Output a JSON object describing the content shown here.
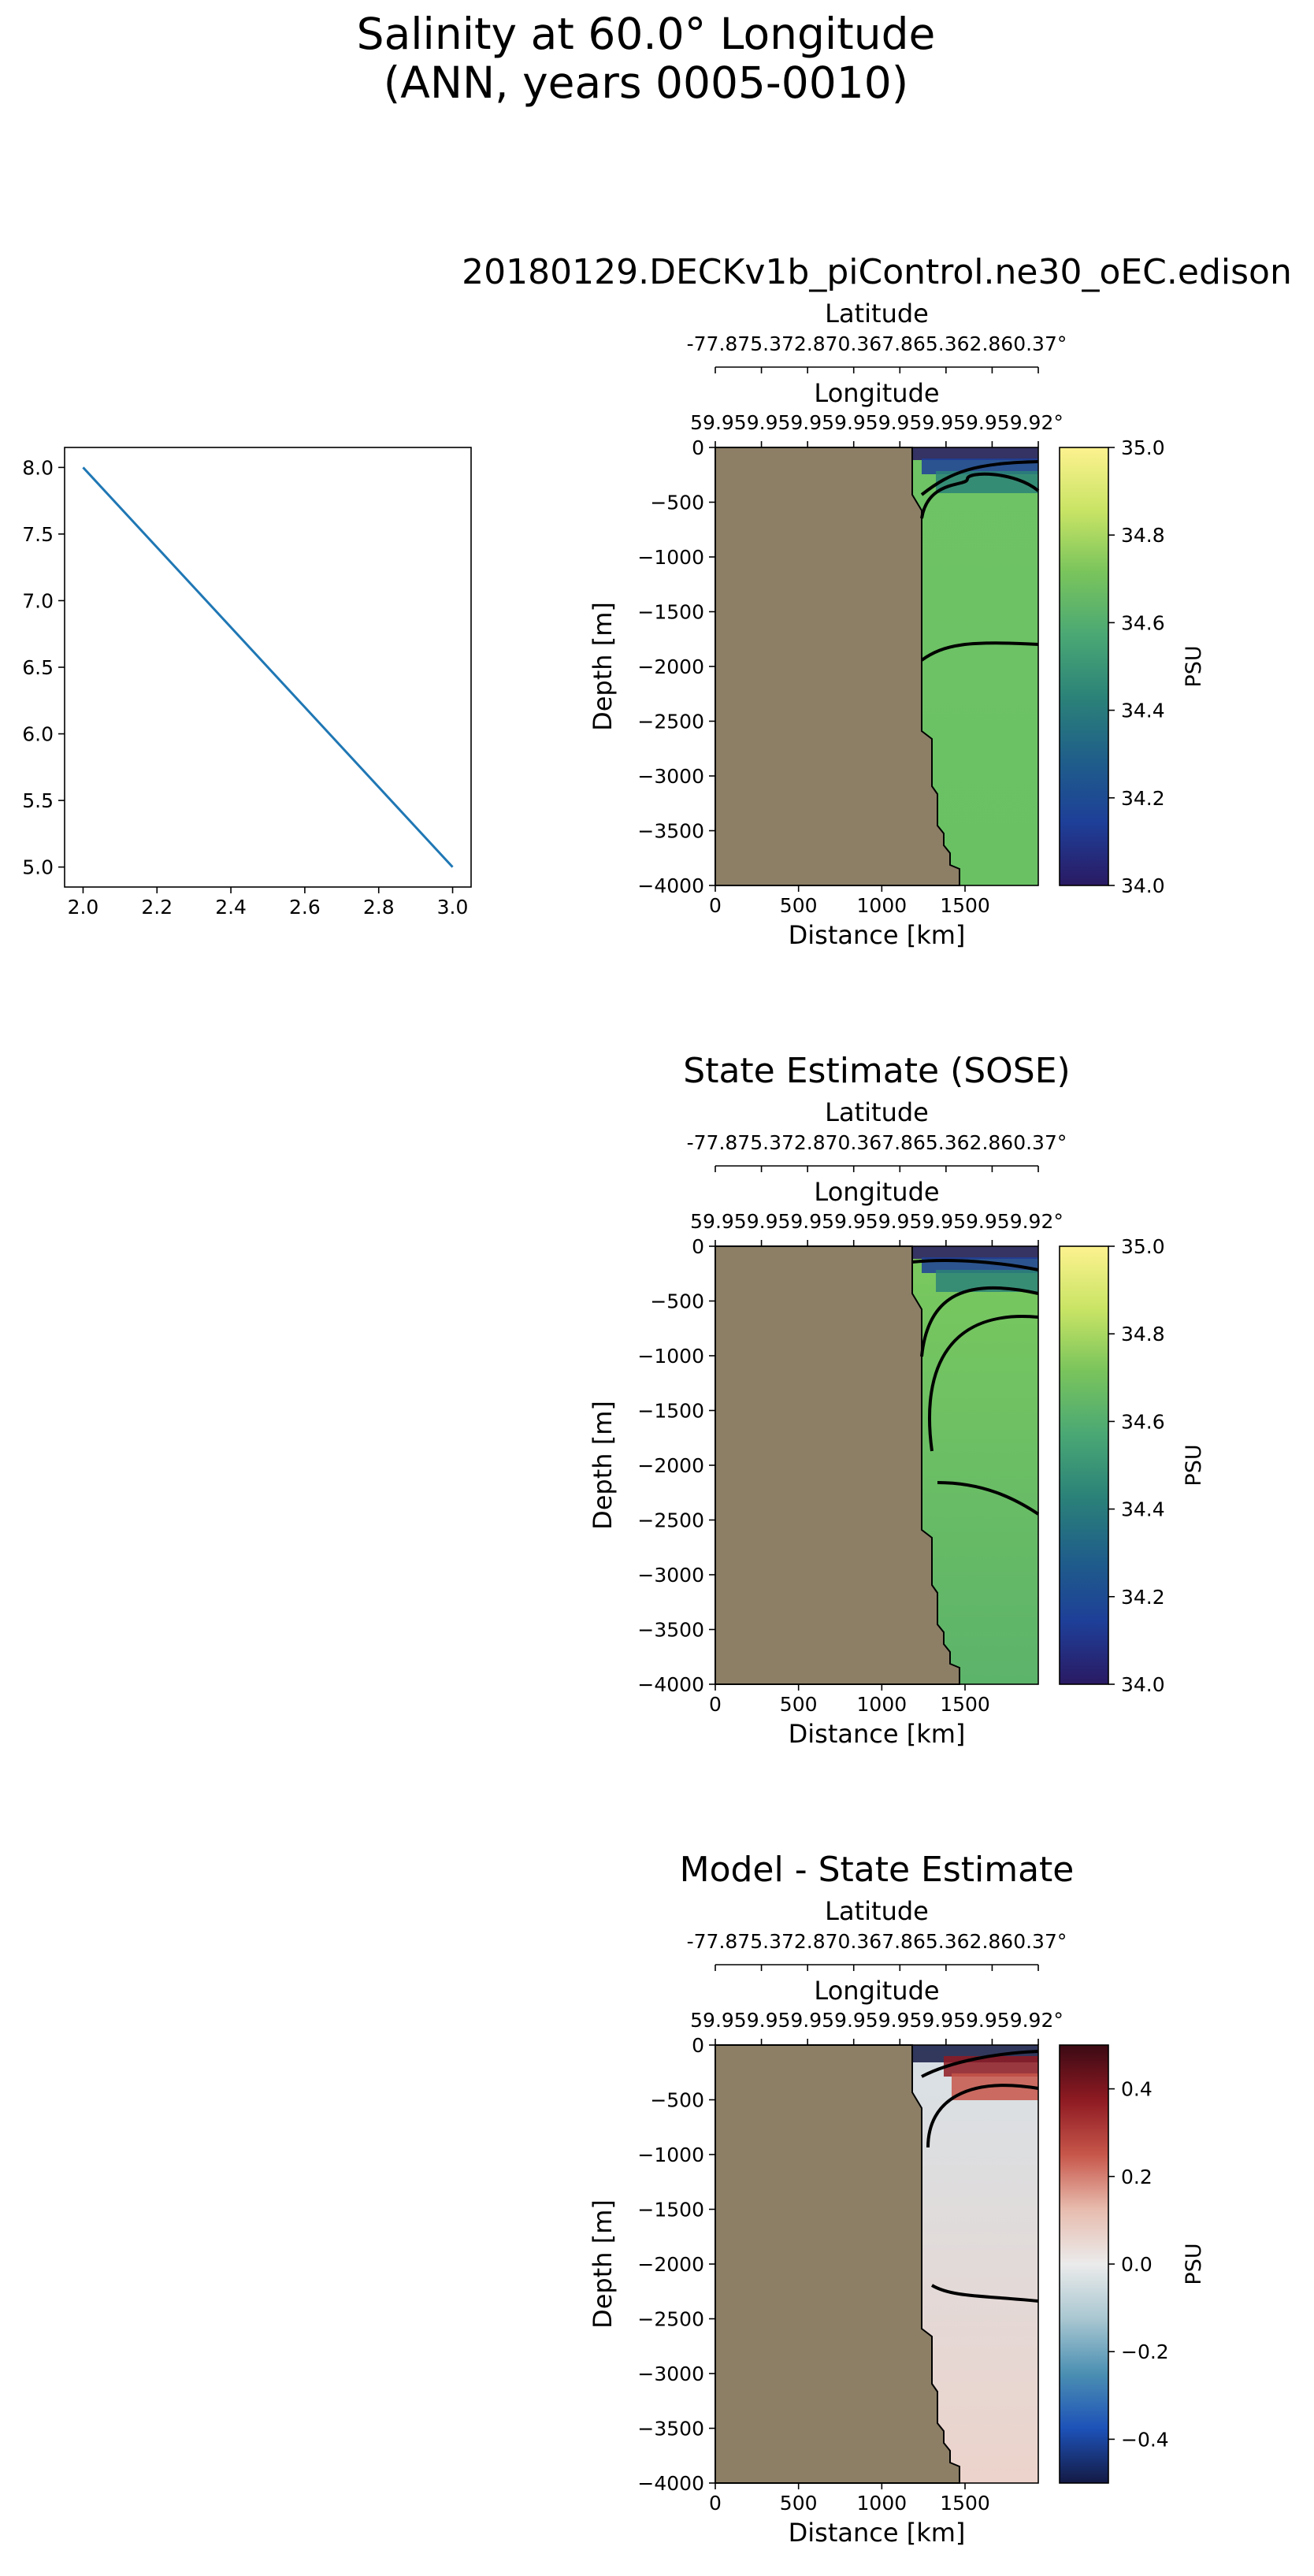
{
  "figure": {
    "title_line1": "Salinity at 60.0° Longitude",
    "title_line2": "(ANN, years 0005-0010)"
  },
  "colors": {
    "land": "#8c7f66",
    "line": "#1f77b4",
    "contour": "#000000"
  },
  "chart_data": [
    {
      "id": "line-plot",
      "type": "line",
      "x": [
        2.0,
        3.0
      ],
      "y": [
        8.0,
        5.0
      ],
      "xlim": [
        1.95,
        3.05
      ],
      "ylim": [
        4.85,
        8.15
      ],
      "xticks": [
        "2.0",
        "2.2",
        "2.4",
        "2.6",
        "2.8",
        "3.0"
      ],
      "yticks": [
        "5.0",
        "5.5",
        "6.0",
        "6.5",
        "7.0",
        "7.5",
        "8.0"
      ]
    },
    {
      "id": "model",
      "type": "heatmap",
      "title": "20180129.DECKv1b_piControl.ne30_oEC.edison",
      "top_axis_1_label": "Latitude",
      "top_axis_1_ticks": "-77.875.372.870.367.865.362.860.37°",
      "top_axis_2_label": "Longitude",
      "top_axis_2_ticks": "59.959.959.959.959.959.959.959.92°",
      "xlabel": "Distance [km]",
      "ylabel": "Depth [m]",
      "xlim": [
        0,
        1940
      ],
      "ylim": [
        -4000,
        0
      ],
      "xticks": [
        "0",
        "500",
        "1000",
        "1500"
      ],
      "yticks": [
        "0",
        "−500",
        "−1000",
        "−1500",
        "−2000",
        "−2500",
        "−3000",
        "−3500",
        "−4000"
      ],
      "colorbar_label": "PSU",
      "colorbar_range": [
        34.0,
        35.0
      ],
      "colorbar_ticks": [
        "35.0",
        "34.8",
        "34.6",
        "34.4",
        "34.2",
        "34.0"
      ],
      "colormap": [
        "#fdf28f",
        "#c9e465",
        "#79c45c",
        "#4aa874",
        "#2b8278",
        "#1f5e8a",
        "#1e3f98",
        "#2a1a63"
      ],
      "fill_top": "#6fc364",
      "fill_bottom": "#69c164"
    },
    {
      "id": "sose",
      "type": "heatmap",
      "title": "State Estimate (SOSE)",
      "top_axis_1_label": "Latitude",
      "top_axis_1_ticks": "-77.875.372.870.367.865.362.860.37°",
      "top_axis_2_label": "Longitude",
      "top_axis_2_ticks": "59.959.959.959.959.959.959.959.92°",
      "xlabel": "Distance [km]",
      "ylabel": "Depth [m]",
      "xlim": [
        0,
        1940
      ],
      "ylim": [
        -4000,
        0
      ],
      "xticks": [
        "0",
        "500",
        "1000",
        "1500"
      ],
      "yticks": [
        "0",
        "−500",
        "−1000",
        "−1500",
        "−2000",
        "−2500",
        "−3000",
        "−3500",
        "−4000"
      ],
      "colorbar_label": "PSU",
      "colorbar_range": [
        34.0,
        35.0
      ],
      "colorbar_ticks": [
        "35.0",
        "34.8",
        "34.6",
        "34.4",
        "34.2",
        "34.0"
      ],
      "colormap": [
        "#fdf28f",
        "#c9e465",
        "#79c45c",
        "#4aa874",
        "#2b8278",
        "#1f5e8a",
        "#1e3f98",
        "#2a1a63"
      ],
      "fill_top": "#7ac95e",
      "fill_bottom": "#5cb36a"
    },
    {
      "id": "diff",
      "type": "heatmap",
      "title": "Model - State Estimate",
      "top_axis_1_label": "Latitude",
      "top_axis_1_ticks": "-77.875.372.870.367.865.362.860.37°",
      "top_axis_2_label": "Longitude",
      "top_axis_2_ticks": "59.959.959.959.959.959.959.959.92°",
      "xlabel": "Distance [km]",
      "ylabel": "Depth [m]",
      "xlim": [
        0,
        1940
      ],
      "ylim": [
        -4000,
        0
      ],
      "xticks": [
        "0",
        "500",
        "1000",
        "1500"
      ],
      "yticks": [
        "0",
        "−500",
        "−1000",
        "−1500",
        "−2000",
        "−2500",
        "−3000",
        "−3500",
        "−4000"
      ],
      "colorbar_label": "PSU",
      "colorbar_range": [
        -0.5,
        0.5
      ],
      "colorbar_ticks": [
        "0.4",
        "0.2",
        "0.0",
        "−0.2",
        "−0.4"
      ],
      "colormap": [
        "#3b0a14",
        "#8e1a22",
        "#c7564a",
        "#e7bcae",
        "#ebebeb",
        "#a9c7d1",
        "#4b8fb2",
        "#1d52b8",
        "#141a44"
      ],
      "fill_top": "#d8e1e6",
      "fill_bottom": "#ecd3cb"
    }
  ]
}
